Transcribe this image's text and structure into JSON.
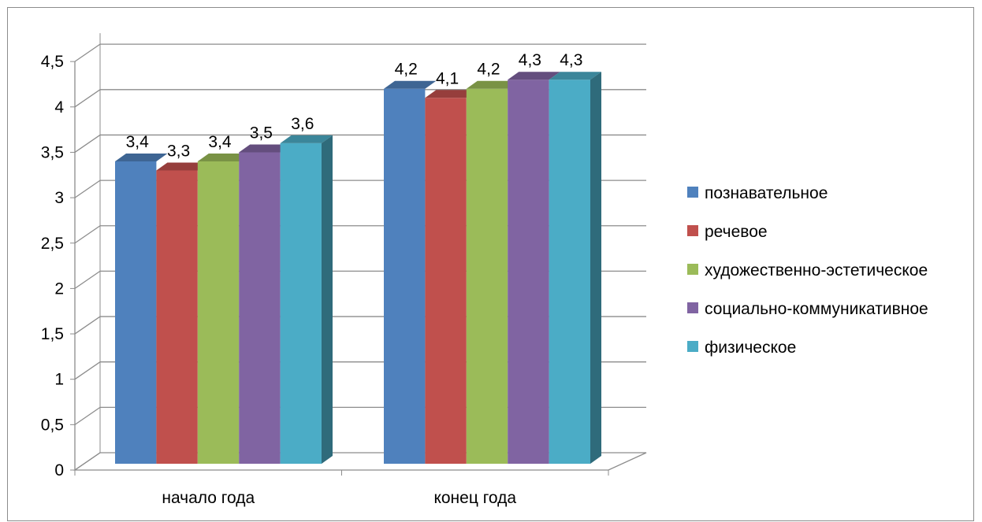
{
  "chart_data": {
    "type": "bar",
    "title": "",
    "xlabel": "",
    "ylabel": "",
    "categories": [
      "начало года",
      "конец года"
    ],
    "series": [
      {
        "name": "познавательное",
        "values": [
          3.4,
          4.2
        ],
        "color": "#4F81BD"
      },
      {
        "name": "речевое",
        "values": [
          3.3,
          4.1
        ],
        "color": "#C0504D"
      },
      {
        "name": "художественно-эстетическое",
        "values": [
          3.4,
          4.2
        ],
        "color": "#9BBB59"
      },
      {
        "name": "социально-коммуникативное",
        "values": [
          3.5,
          4.3
        ],
        "color": "#8064A2"
      },
      {
        "name": "физическое",
        "values": [
          3.6,
          4.3
        ],
        "color": "#4BACC6"
      }
    ],
    "ylim": [
      0,
      4.5
    ],
    "yticks": [
      "0",
      "0,5",
      "1",
      "1,5",
      "2",
      "2,5",
      "3",
      "3,5",
      "4",
      "4,5"
    ],
    "data_labels": [
      [
        "3,4",
        "4,2"
      ],
      [
        "3,3",
        "4,1"
      ],
      [
        "3,4",
        "4,2"
      ],
      [
        "3,5",
        "4,3"
      ],
      [
        "3,6",
        "4,3"
      ]
    ],
    "grid": true,
    "legend_position": "right",
    "style": "3d-clustered-column"
  }
}
